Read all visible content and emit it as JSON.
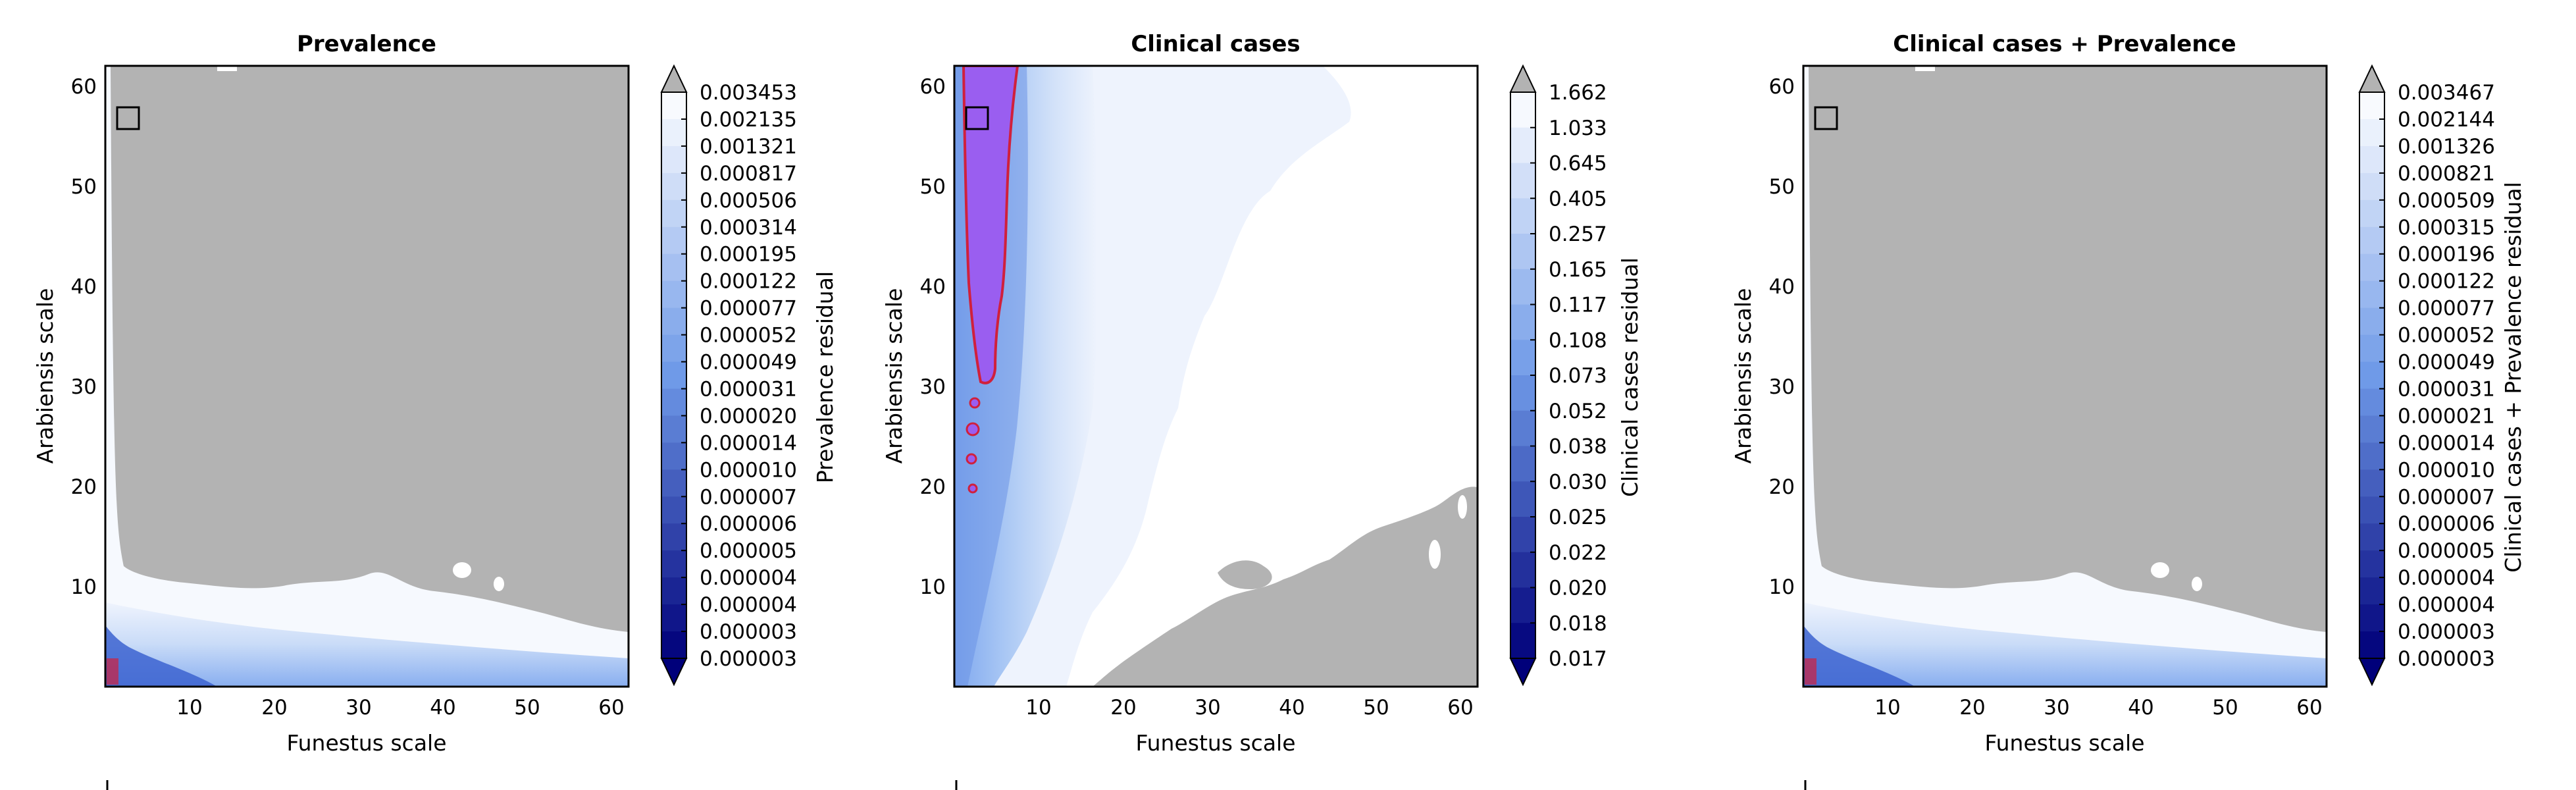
{
  "chart_data": [
    {
      "type": "heatmap",
      "title": "Prevalence",
      "xlabel": "Funestus scale",
      "ylabel": "Arabiensis scale",
      "xlim": [
        0,
        62
      ],
      "ylim": [
        0,
        62
      ],
      "xticks": [
        "10",
        "20",
        "30",
        "40",
        "50",
        "60"
      ],
      "yticks": [
        "10",
        "20",
        "30",
        "40",
        "50",
        "60"
      ],
      "colorbar": {
        "label": "Prevalence residual",
        "levels": [
          "0.003453",
          "0.002135",
          "0.001321",
          "0.000817",
          "0.000506",
          "0.000314",
          "0.000195",
          "0.000122",
          "0.000077",
          "0.000052",
          "0.000049",
          "0.000031",
          "0.000020",
          "0.000014",
          "0.000010",
          "0.000007",
          "0.000006",
          "0.000005",
          "0.000004",
          "0.000004",
          "0.000003",
          "0.000003"
        ]
      },
      "marker": {
        "shape": "square",
        "x": 2,
        "y": 57
      }
    },
    {
      "type": "heatmap",
      "title": "Clinical cases",
      "xlabel": "Funestus scale",
      "ylabel": "Arabiensis scale",
      "xlim": [
        0,
        62
      ],
      "ylim": [
        0,
        62
      ],
      "xticks": [
        "10",
        "20",
        "30",
        "40",
        "50",
        "60"
      ],
      "yticks": [
        "10",
        "20",
        "30",
        "40",
        "50",
        "60"
      ],
      "colorbar": {
        "label": "Clinical cases residual",
        "levels": [
          "1.662",
          "1.033",
          "0.645",
          "0.405",
          "0.257",
          "0.165",
          "0.117",
          "0.108",
          "0.073",
          "0.052",
          "0.038",
          "0.030",
          "0.025",
          "0.022",
          "0.020",
          "0.018",
          "0.017"
        ]
      },
      "marker": {
        "shape": "square",
        "x": 2,
        "y": 57
      }
    },
    {
      "type": "heatmap",
      "title": "Clinical cases + Prevalence",
      "xlabel": "Funestus scale",
      "ylabel": "Arabiensis scale",
      "xlim": [
        0,
        62
      ],
      "ylim": [
        0,
        62
      ],
      "xticks": [
        "10",
        "20",
        "30",
        "40",
        "50",
        "60"
      ],
      "yticks": [
        "10",
        "20",
        "30",
        "40",
        "50",
        "60"
      ],
      "colorbar": {
        "label": "Clinical cases + Prevalence residual",
        "levels": [
          "0.003467",
          "0.002144",
          "0.001326",
          "0.000821",
          "0.000509",
          "0.000315",
          "0.000196",
          "0.000122",
          "0.000077",
          "0.000052",
          "0.000049",
          "0.000031",
          "0.000021",
          "0.000014",
          "0.000010",
          "0.000007",
          "0.000006",
          "0.000005",
          "0.000004",
          "0.000004",
          "0.000003",
          "0.000003"
        ]
      },
      "marker": {
        "shape": "square",
        "x": 2,
        "y": 57
      }
    }
  ],
  "colors": {
    "masked": "#b3b3b3",
    "light": "#eef3fd",
    "mid": "#9ec3f4",
    "dark": "#00007a",
    "purple": "#9a5ef0",
    "contour": "#d0203c"
  }
}
